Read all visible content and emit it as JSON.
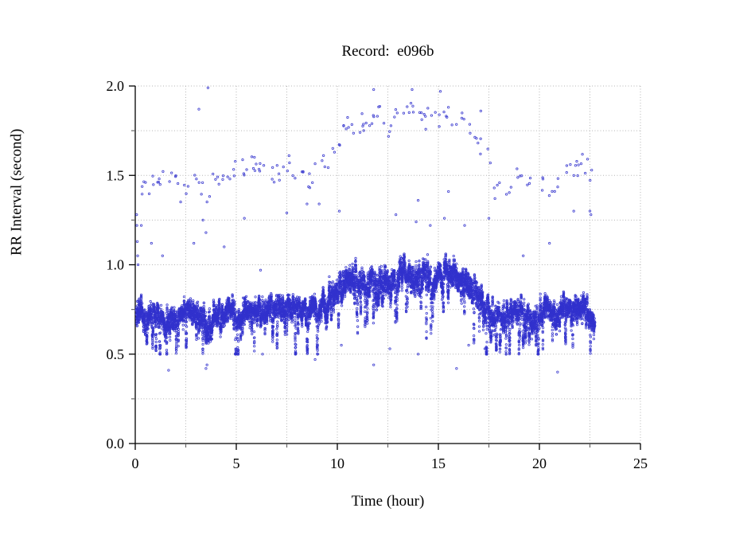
{
  "chart_data": {
    "type": "scatter",
    "title": "Record:  e096b",
    "xlabel": "Time (hour)",
    "ylabel": "RR Interval (second)",
    "xlim": [
      0,
      25
    ],
    "ylim": [
      0.0,
      2.0
    ],
    "x_major_ticks": [
      0,
      5,
      10,
      15,
      20,
      25
    ],
    "x_minor_ticks": [
      2.5,
      7.5,
      12.5,
      17.5,
      22.5
    ],
    "y_major_ticks": [
      0.0,
      0.5,
      1.0,
      1.5,
      2.0
    ],
    "y_minor_ticks": [
      0.25,
      0.75,
      1.25,
      1.75
    ],
    "grid": {
      "show": true,
      "style": "dotted",
      "color": "#b5b5b5",
      "x_step": 2.5,
      "y_step": 0.25
    },
    "legend": "none",
    "axis_color": "#000000",
    "minor_tick_color": "#666666",
    "marker": {
      "shape": "open-circle",
      "color": "#3232cd",
      "radius_px": 1.2
    },
    "data_time_range_hours": [
      0.05,
      22.75
    ],
    "series": [
      {
        "name": "beat-to-beat RR intervals (dense band)",
        "representation": "envelope",
        "points_per_hour": 300,
        "envelope_t_center_halfspread": [
          [
            0.05,
            0.74,
            0.13
          ],
          [
            0.3,
            0.72,
            0.1
          ],
          [
            0.6,
            0.7,
            0.09
          ],
          [
            1.0,
            0.73,
            0.09
          ],
          [
            1.4,
            0.71,
            0.1
          ],
          [
            1.6,
            0.66,
            0.12
          ],
          [
            1.8,
            0.7,
            0.09
          ],
          [
            2.2,
            0.73,
            0.08
          ],
          [
            2.6,
            0.74,
            0.08
          ],
          [
            3.0,
            0.71,
            0.1
          ],
          [
            3.3,
            0.68,
            0.11
          ],
          [
            3.6,
            0.63,
            0.13
          ],
          [
            3.9,
            0.7,
            0.1
          ],
          [
            4.3,
            0.74,
            0.09
          ],
          [
            4.7,
            0.76,
            0.08
          ],
          [
            5.0,
            0.69,
            0.12
          ],
          [
            5.3,
            0.73,
            0.09
          ],
          [
            5.7,
            0.75,
            0.08
          ],
          [
            6.1,
            0.76,
            0.08
          ],
          [
            6.5,
            0.74,
            0.09
          ],
          [
            6.9,
            0.76,
            0.08
          ],
          [
            7.3,
            0.75,
            0.09
          ],
          [
            7.7,
            0.74,
            0.09
          ],
          [
            8.1,
            0.76,
            0.08
          ],
          [
            8.5,
            0.73,
            0.1
          ],
          [
            8.9,
            0.75,
            0.09
          ],
          [
            9.3,
            0.77,
            0.1
          ],
          [
            9.7,
            0.79,
            0.11
          ],
          [
            10.1,
            0.84,
            0.11
          ],
          [
            10.5,
            0.9,
            0.1
          ],
          [
            10.9,
            0.88,
            0.12
          ],
          [
            11.3,
            0.91,
            0.11
          ],
          [
            11.7,
            0.89,
            0.12
          ],
          [
            12.1,
            0.88,
            0.13
          ],
          [
            12.5,
            0.92,
            0.12
          ],
          [
            12.9,
            0.93,
            0.12
          ],
          [
            13.3,
            0.95,
            0.11
          ],
          [
            13.7,
            0.94,
            0.11
          ],
          [
            14.1,
            0.92,
            0.13
          ],
          [
            14.5,
            0.9,
            0.13
          ],
          [
            14.9,
            0.92,
            0.12
          ],
          [
            15.3,
            0.93,
            0.11
          ],
          [
            15.7,
            0.94,
            0.1
          ],
          [
            16.1,
            0.92,
            0.1
          ],
          [
            16.5,
            0.89,
            0.12
          ],
          [
            16.9,
            0.84,
            0.13
          ],
          [
            17.3,
            0.76,
            0.12
          ],
          [
            17.7,
            0.71,
            0.11
          ],
          [
            18.1,
            0.7,
            0.1
          ],
          [
            18.5,
            0.72,
            0.1
          ],
          [
            18.9,
            0.75,
            0.09
          ],
          [
            19.3,
            0.73,
            0.1
          ],
          [
            19.7,
            0.7,
            0.1
          ],
          [
            20.1,
            0.72,
            0.09
          ],
          [
            20.5,
            0.74,
            0.09
          ],
          [
            20.9,
            0.7,
            0.1
          ],
          [
            21.3,
            0.74,
            0.09
          ],
          [
            21.7,
            0.77,
            0.09
          ],
          [
            22.1,
            0.78,
            0.09
          ],
          [
            22.4,
            0.72,
            0.09
          ],
          [
            22.65,
            0.68,
            0.07
          ],
          [
            22.75,
            0.67,
            0.06
          ]
        ]
      },
      {
        "name": "prolonged RR outlier cloud (~2x band)",
        "representation": "envelope",
        "envelope_t_center_halfspread_density": [
          [
            0.2,
            1.43,
            0.06,
            9
          ],
          [
            1.0,
            1.46,
            0.05,
            8
          ],
          [
            1.6,
            1.5,
            0.04,
            8
          ],
          [
            2.1,
            1.44,
            0.05,
            8
          ],
          [
            2.5,
            1.37,
            0.05,
            6
          ],
          [
            2.8,
            1.54,
            0.04,
            8
          ],
          [
            3.2,
            1.47,
            0.08,
            8
          ],
          [
            3.7,
            1.4,
            0.1,
            8
          ],
          [
            4.1,
            1.52,
            0.06,
            8
          ],
          [
            4.6,
            1.48,
            0.08,
            6
          ],
          [
            5.1,
            1.52,
            0.06,
            8
          ],
          [
            5.6,
            1.56,
            0.05,
            9
          ],
          [
            6.1,
            1.55,
            0.06,
            9
          ],
          [
            6.6,
            1.52,
            0.06,
            8
          ],
          [
            7.1,
            1.5,
            0.06,
            8
          ],
          [
            7.6,
            1.55,
            0.06,
            8
          ],
          [
            8.1,
            1.52,
            0.07,
            7
          ],
          [
            8.6,
            1.48,
            0.08,
            7
          ],
          [
            9.1,
            1.55,
            0.07,
            7
          ],
          [
            9.6,
            1.6,
            0.07,
            7
          ],
          [
            10.1,
            1.66,
            0.06,
            6
          ],
          [
            10.4,
            1.77,
            0.04,
            12
          ],
          [
            10.8,
            1.8,
            0.05,
            10
          ],
          [
            11.3,
            1.79,
            0.06,
            9
          ],
          [
            11.8,
            1.83,
            0.07,
            9
          ],
          [
            12.3,
            1.77,
            0.09,
            8
          ],
          [
            12.8,
            1.8,
            0.08,
            8
          ],
          [
            13.3,
            1.85,
            0.05,
            9
          ],
          [
            13.8,
            1.86,
            0.05,
            9
          ],
          [
            14.3,
            1.82,
            0.07,
            8
          ],
          [
            14.8,
            1.8,
            0.08,
            8
          ],
          [
            15.3,
            1.83,
            0.07,
            8
          ],
          [
            15.8,
            1.84,
            0.06,
            8
          ],
          [
            16.2,
            1.85,
            0.05,
            8
          ],
          [
            16.6,
            1.75,
            0.06,
            7
          ],
          [
            17.0,
            1.7,
            0.06,
            6
          ],
          [
            17.4,
            1.62,
            0.08,
            5
          ],
          [
            17.9,
            1.45,
            0.08,
            6
          ],
          [
            18.4,
            1.42,
            0.07,
            6
          ],
          [
            18.9,
            1.5,
            0.06,
            6
          ],
          [
            19.4,
            1.52,
            0.06,
            5
          ],
          [
            19.9,
            1.45,
            0.07,
            5
          ],
          [
            20.4,
            1.42,
            0.06,
            5
          ],
          [
            20.9,
            1.5,
            0.08,
            7
          ],
          [
            21.4,
            1.55,
            0.07,
            9
          ],
          [
            21.9,
            1.57,
            0.08,
            10
          ],
          [
            22.3,
            1.55,
            0.1,
            10
          ],
          [
            22.6,
            1.45,
            0.12,
            8
          ]
        ]
      },
      {
        "name": "isolated outliers",
        "representation": "points",
        "points_t_v": [
          [
            3.6,
            1.99
          ],
          [
            11.8,
            1.98
          ],
          [
            13.7,
            1.98
          ],
          [
            15.1,
            1.97
          ],
          [
            3.15,
            1.87
          ],
          [
            17.1,
            1.86
          ],
          [
            0.07,
            1.28
          ],
          [
            0.08,
            1.22
          ],
          [
            0.1,
            1.13
          ],
          [
            0.12,
            1.05
          ],
          [
            0.14,
            1.0
          ],
          [
            0.3,
            1.22
          ],
          [
            0.8,
            1.12
          ],
          [
            1.35,
            1.05
          ],
          [
            2.9,
            1.12
          ],
          [
            3.35,
            1.25
          ],
          [
            3.5,
            1.18
          ],
          [
            4.4,
            1.1
          ],
          [
            5.4,
            1.26
          ],
          [
            6.2,
            0.97
          ],
          [
            7.5,
            1.29
          ],
          [
            8.5,
            1.34
          ],
          [
            9.1,
            1.34
          ],
          [
            10.1,
            1.3
          ],
          [
            12.9,
            1.28
          ],
          [
            13.9,
            1.24
          ],
          [
            14.0,
            1.36
          ],
          [
            14.6,
            1.22
          ],
          [
            15.3,
            1.26
          ],
          [
            15.5,
            1.41
          ],
          [
            16.3,
            1.22
          ],
          [
            17.5,
            1.26
          ],
          [
            17.8,
            1.37
          ],
          [
            19.2,
            1.05
          ],
          [
            20.5,
            1.12
          ],
          [
            21.7,
            1.3
          ],
          [
            22.5,
            1.3
          ],
          [
            22.55,
            1.28
          ],
          [
            1.65,
            0.41
          ],
          [
            3.55,
            0.44
          ],
          [
            3.5,
            0.42
          ],
          [
            5.1,
            0.52
          ],
          [
            6.3,
            0.5
          ],
          [
            8.9,
            0.47
          ],
          [
            10.2,
            0.55
          ],
          [
            11.8,
            0.44
          ],
          [
            12.6,
            0.53
          ],
          [
            14.0,
            0.5
          ],
          [
            15.9,
            0.42
          ],
          [
            16.5,
            0.55
          ],
          [
            17.3,
            0.53
          ],
          [
            19.0,
            0.55
          ],
          [
            20.9,
            0.4
          ]
        ]
      }
    ]
  }
}
